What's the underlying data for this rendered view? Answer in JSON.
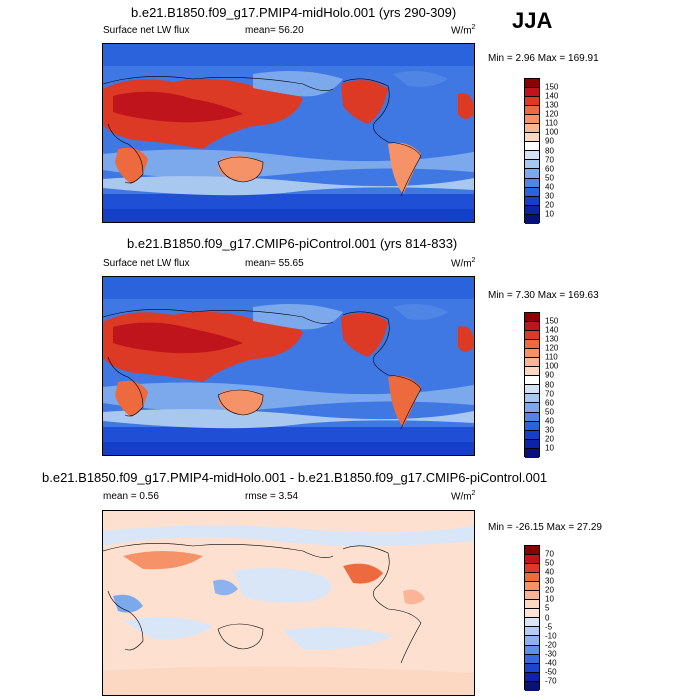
{
  "season": "JJA",
  "panels": [
    {
      "title": "b.e21.B1850.f09_g17.PMIP4-midHolo.001 (yrs 290-309)",
      "left_label": "Surface net LW flux",
      "mean_label": "mean=  56.20",
      "units_main": "W/m",
      "units_sup": "2",
      "minmax": "Min =   2.96 Max = 169.91",
      "colorbar": {
        "labels": [
          "150",
          "140",
          "130",
          "120",
          "110",
          "100",
          "90",
          "80",
          "70",
          "60",
          "50",
          "40",
          "30",
          "20",
          "10"
        ],
        "colors": [
          "#8b0000",
          "#c0141c",
          "#dc3a24",
          "#ed6a3e",
          "#f59268",
          "#f9b595",
          "#fcd7c2",
          "#ffffff",
          "#d2e3f7",
          "#a9c8f0",
          "#7ca9ec",
          "#4f86e6",
          "#2b63dc",
          "#143fc9",
          "#0b23a8",
          "#08107a"
        ]
      }
    },
    {
      "title": "b.e21.B1850.f09_g17.CMIP6-piControl.001 (yrs 814-833)",
      "left_label": "Surface net LW flux",
      "mean_label": "mean=  55.65",
      "units_main": "W/m",
      "units_sup": "2",
      "minmax": "Min =   7.30 Max = 169.63",
      "colorbar": {
        "labels": [
          "150",
          "140",
          "130",
          "120",
          "110",
          "100",
          "90",
          "80",
          "70",
          "60",
          "50",
          "40",
          "30",
          "20",
          "10"
        ],
        "colors": [
          "#8b0000",
          "#c0141c",
          "#dc3a24",
          "#ed6a3e",
          "#f59268",
          "#f9b595",
          "#fcd7c2",
          "#ffffff",
          "#d2e3f7",
          "#a9c8f0",
          "#7ca9ec",
          "#4f86e6",
          "#2b63dc",
          "#143fc9",
          "#0b23a8",
          "#08107a"
        ]
      }
    },
    {
      "title": "b.e21.B1850.f09_g17.PMIP4-midHolo.001 - b.e21.B1850.f09_g17.CMIP6-piControl.001",
      "mean_label": "mean =   0.56",
      "rmse_label": "rmse =   3.54",
      "units_main": "W/m",
      "units_sup": "2",
      "minmax": "Min = -26.15 Max =  27.29",
      "colorbar": {
        "labels": [
          "70",
          "50",
          "40",
          "30",
          "20",
          "10",
          "5",
          "0",
          "-5",
          "-10",
          "-20",
          "-30",
          "-40",
          "-50",
          "-70"
        ],
        "colors": [
          "#8b0000",
          "#c0141c",
          "#dc3a24",
          "#ed6a3e",
          "#f59268",
          "#f9b595",
          "#fcd7c2",
          "#ffe4d6",
          "#d8e6f8",
          "#b4cdf2",
          "#8db2ee",
          "#5f8fe8",
          "#3569df",
          "#1b45cc",
          "#0c25a8",
          "#08107a"
        ]
      }
    }
  ]
}
